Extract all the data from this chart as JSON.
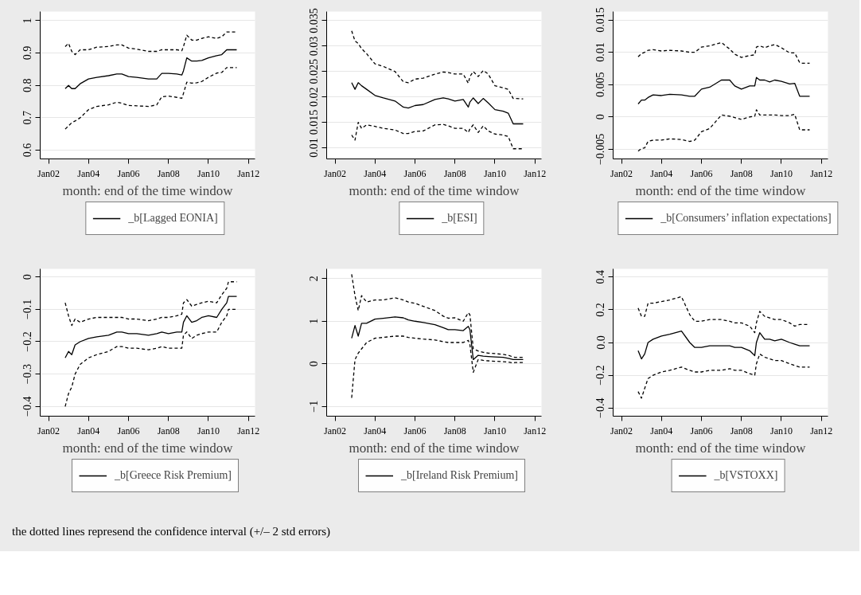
{
  "chart_data": [
    {
      "type": "line",
      "xlabel": "month: end of the time window",
      "legend": "bottom",
      "grid": "y",
      "line_style": "solid",
      "x": [
        "2002-11",
        "2003-01",
        "2003-03",
        "2003-05",
        "2003-08",
        "2004-01",
        "2004-06",
        "2005-01",
        "2005-06",
        "2005-09",
        "2006-01",
        "2006-06",
        "2007-01",
        "2007-06",
        "2007-09",
        "2008-01",
        "2008-06",
        "2008-09",
        "2008-10",
        "2008-12",
        "2009-03",
        "2009-06",
        "2009-09",
        "2010-01",
        "2010-06",
        "2010-09",
        "2010-12",
        "2011-01",
        "2011-06"
      ],
      "xlim": [
        "2001-08",
        "2012-05"
      ],
      "xticks": [
        {
          "value": "2002-01",
          "label": "Jan02"
        },
        {
          "value": "2004-01",
          "label": "Jan04"
        },
        {
          "value": "2006-01",
          "label": "Jan06"
        },
        {
          "value": "2008-01",
          "label": "Jan08"
        },
        {
          "value": "2010-01",
          "label": "Jan10"
        },
        {
          "value": "2012-01",
          "label": "Jan12"
        }
      ],
      "ylim": [
        0.573,
        1.028
      ],
      "yticks": [
        0.6,
        0.7,
        0.8,
        0.9,
        1
      ],
      "series": [
        {
          "name": "_b[Lagged EONIA]",
          "color": "#000000",
          "values": [
            0.79,
            0.8,
            0.79,
            0.79,
            0.805,
            0.82,
            0.825,
            0.83,
            0.835,
            0.835,
            0.827,
            0.825,
            0.82,
            0.82,
            0.837,
            0.837,
            0.835,
            0.832,
            0.845,
            0.885,
            0.875,
            0.875,
            0.877,
            0.885,
            0.892,
            0.895,
            0.91,
            0.91,
            0.91
          ]
        },
        {
          "color": "#000000",
          "line_style": "dashed",
          "values": [
            0.92,
            0.93,
            0.905,
            0.895,
            0.91,
            0.91,
            0.918,
            0.92,
            0.925,
            0.925,
            0.915,
            0.912,
            0.905,
            0.905,
            0.91,
            0.91,
            0.91,
            0.907,
            0.92,
            0.955,
            0.94,
            0.94,
            0.945,
            0.95,
            0.945,
            0.95,
            0.965,
            0.965,
            0.965
          ]
        },
        {
          "color": "#000000",
          "line_style": "dashed",
          "values": [
            0.665,
            0.675,
            0.685,
            0.69,
            0.7,
            0.725,
            0.735,
            0.74,
            0.748,
            0.745,
            0.738,
            0.737,
            0.735,
            0.74,
            0.765,
            0.767,
            0.763,
            0.76,
            0.775,
            0.81,
            0.807,
            0.808,
            0.812,
            0.825,
            0.838,
            0.84,
            0.855,
            0.855,
            0.855
          ]
        }
      ]
    },
    {
      "type": "line",
      "xlabel": "month: end of the time window",
      "legend": "bottom",
      "grid": "y",
      "line_style": "solid",
      "x": [
        "2002-11",
        "2003-01",
        "2003-03",
        "2003-05",
        "2003-08",
        "2004-01",
        "2004-06",
        "2005-01",
        "2005-06",
        "2005-09",
        "2006-01",
        "2006-06",
        "2007-01",
        "2007-06",
        "2007-09",
        "2008-01",
        "2008-06",
        "2008-09",
        "2008-10",
        "2008-12",
        "2009-03",
        "2009-06",
        "2009-09",
        "2010-01",
        "2010-06",
        "2010-09",
        "2010-12",
        "2011-01",
        "2011-06"
      ],
      "xlim": [
        "2001-08",
        "2012-05"
      ],
      "xticks": [
        {
          "value": "2002-01",
          "label": "Jan02"
        },
        {
          "value": "2004-01",
          "label": "Jan04"
        },
        {
          "value": "2006-01",
          "label": "Jan06"
        },
        {
          "value": "2008-01",
          "label": "Jan08"
        },
        {
          "value": "2010-01",
          "label": "Jan10"
        },
        {
          "value": "2012-01",
          "label": "Jan12"
        }
      ],
      "ylim": [
        0.0078,
        0.0368
      ],
      "yticks": [
        0.01,
        0.015,
        0.02,
        0.025,
        0.03,
        0.035
      ],
      "series": [
        {
          "name": "_b[ESI]",
          "color": "#000000",
          "values": [
            0.0228,
            0.0215,
            0.0228,
            0.0222,
            0.0215,
            0.0203,
            0.0198,
            0.0192,
            0.018,
            0.0178,
            0.0183,
            0.0185,
            0.0195,
            0.0198,
            0.0196,
            0.0192,
            0.0195,
            0.018,
            0.019,
            0.0198,
            0.0187,
            0.0197,
            0.0188,
            0.0175,
            0.0172,
            0.0168,
            0.0147,
            0.0147,
            0.0147
          ]
        },
        {
          "color": "#000000",
          "line_style": "dashed",
          "values": [
            0.033,
            0.031,
            0.0305,
            0.0295,
            0.0285,
            0.0265,
            0.026,
            0.025,
            0.023,
            0.0228,
            0.0235,
            0.0237,
            0.0245,
            0.0249,
            0.0248,
            0.0245,
            0.0245,
            0.0227,
            0.024,
            0.025,
            0.024,
            0.0252,
            0.0245,
            0.0222,
            0.0218,
            0.0215,
            0.0197,
            0.0197,
            0.0196
          ]
        },
        {
          "color": "#000000",
          "line_style": "dashed",
          "values": [
            0.0125,
            0.0115,
            0.015,
            0.0138,
            0.0145,
            0.0142,
            0.0138,
            0.0135,
            0.0128,
            0.0128,
            0.0132,
            0.0133,
            0.0145,
            0.0146,
            0.0143,
            0.0138,
            0.0138,
            0.013,
            0.0137,
            0.0145,
            0.013,
            0.0143,
            0.0133,
            0.0127,
            0.0125,
            0.0122,
            0.0098,
            0.0098,
            0.0098
          ]
        }
      ]
    },
    {
      "type": "line",
      "xlabel": "month: end of the time window",
      "legend": "bottom",
      "grid": "y",
      "line_style": "solid",
      "x": [
        "2002-11",
        "2003-01",
        "2003-03",
        "2003-05",
        "2003-08",
        "2004-01",
        "2004-06",
        "2005-01",
        "2005-06",
        "2005-09",
        "2006-01",
        "2006-06",
        "2007-01",
        "2007-06",
        "2007-09",
        "2008-01",
        "2008-06",
        "2008-09",
        "2008-10",
        "2008-12",
        "2009-03",
        "2009-06",
        "2009-09",
        "2010-01",
        "2010-06",
        "2010-09",
        "2010-12",
        "2011-01",
        "2011-06"
      ],
      "xlim": [
        "2001-08",
        "2012-05"
      ],
      "xticks": [
        {
          "value": "2002-01",
          "label": "Jan02"
        },
        {
          "value": "2004-01",
          "label": "Jan04"
        },
        {
          "value": "2006-01",
          "label": "Jan06"
        },
        {
          "value": "2008-01",
          "label": "Jan08"
        },
        {
          "value": "2010-01",
          "label": "Jan10"
        },
        {
          "value": "2012-01",
          "label": "Jan12"
        }
      ],
      "ylim": [
        -0.0065,
        0.0163
      ],
      "yticks": [
        {
          "value": -0.005,
          "label": "−0.005"
        },
        0,
        0.005,
        0.01,
        0.015
      ],
      "series": [
        {
          "name": "_b[Consumers’ inflation expectations]",
          "color": "#000000",
          "values": [
            0.002,
            0.0026,
            0.0026,
            0.003,
            0.0034,
            0.0033,
            0.0035,
            0.0034,
            0.0032,
            0.0032,
            0.0043,
            0.0046,
            0.0057,
            0.0057,
            0.0048,
            0.0043,
            0.0048,
            0.0048,
            0.0061,
            0.0057,
            0.0057,
            0.0054,
            0.0057,
            0.0055,
            0.0051,
            0.0052,
            0.0032,
            0.0032,
            0.0032
          ]
        },
        {
          "color": "#000000",
          "line_style": "dashed",
          "values": [
            0.0093,
            0.0098,
            0.01,
            0.0103,
            0.0104,
            0.0102,
            0.0103,
            0.0102,
            0.01,
            0.01,
            0.0108,
            0.011,
            0.0115,
            0.0105,
            0.0097,
            0.0092,
            0.0095,
            0.0096,
            0.0108,
            0.011,
            0.0107,
            0.011,
            0.0112,
            0.0107,
            0.0099,
            0.0099,
            0.0084,
            0.0083,
            0.0083
          ]
        },
        {
          "color": "#000000",
          "line_style": "dashed",
          "values": [
            -0.0053,
            -0.0049,
            -0.0048,
            -0.0038,
            -0.0036,
            -0.0036,
            -0.0034,
            -0.0035,
            -0.0038,
            -0.0036,
            -0.0023,
            -0.0018,
            0.0003,
            0.0001,
            -0.0001,
            -0.0004,
            0,
            0.0001,
            0.0011,
            0.0003,
            0.0003,
            0.0003,
            0.0003,
            0.0002,
            0.0002,
            0.0004,
            -0.002,
            -0.002,
            -0.002
          ]
        }
      ]
    },
    {
      "type": "line",
      "xlabel": "month: end of the time window",
      "legend": "bottom",
      "grid": "y",
      "line_style": "solid",
      "annotations": [
        "the dotted lines represend the confidence interval (+/– 2 std errors)"
      ],
      "x": [
        "2002-11",
        "2003-01",
        "2003-03",
        "2003-05",
        "2003-08",
        "2004-01",
        "2004-06",
        "2005-01",
        "2005-06",
        "2005-09",
        "2006-01",
        "2006-06",
        "2007-01",
        "2007-06",
        "2007-09",
        "2008-01",
        "2008-06",
        "2008-09",
        "2008-10",
        "2008-12",
        "2009-03",
        "2009-06",
        "2009-09",
        "2010-01",
        "2010-06",
        "2010-09",
        "2010-12",
        "2011-01",
        "2011-06"
      ],
      "xlim": [
        "2001-08",
        "2012-05"
      ],
      "xticks": [
        {
          "value": "2002-01",
          "label": "Jan02"
        },
        {
          "value": "2004-01",
          "label": "Jan04"
        },
        {
          "value": "2006-01",
          "label": "Jan06"
        },
        {
          "value": "2008-01",
          "label": "Jan08"
        },
        {
          "value": "2010-01",
          "label": "Jan10"
        },
        {
          "value": "2012-01",
          "label": "Jan12"
        }
      ],
      "ylim": [
        -0.43,
        0.025
      ],
      "yticks": [
        {
          "value": -0.4,
          "label": "−0.4"
        },
        {
          "value": -0.3,
          "label": "−0.3"
        },
        {
          "value": -0.2,
          "label": "−0.2"
        },
        {
          "value": -0.1,
          "label": "−0.1"
        },
        0
      ],
      "series": [
        {
          "name": "_b[Greece Risk Premium]",
          "color": "#000000",
          "values": [
            -0.25,
            -0.23,
            -0.24,
            -0.21,
            -0.2,
            -0.19,
            -0.185,
            -0.18,
            -0.17,
            -0.17,
            -0.175,
            -0.175,
            -0.18,
            -0.175,
            -0.17,
            -0.175,
            -0.17,
            -0.17,
            -0.14,
            -0.12,
            -0.14,
            -0.135,
            -0.125,
            -0.12,
            -0.125,
            -0.1,
            -0.08,
            -0.06,
            -0.06
          ]
        },
        {
          "color": "#000000",
          "line_style": "dashed",
          "values": [
            -0.08,
            -0.12,
            -0.15,
            -0.13,
            -0.14,
            -0.13,
            -0.125,
            -0.125,
            -0.125,
            -0.125,
            -0.13,
            -0.13,
            -0.135,
            -0.13,
            -0.125,
            -0.125,
            -0.12,
            -0.115,
            -0.08,
            -0.07,
            -0.09,
            -0.085,
            -0.08,
            -0.075,
            -0.08,
            -0.055,
            -0.035,
            -0.015,
            -0.015
          ]
        },
        {
          "color": "#000000",
          "line_style": "dashed",
          "values": [
            -0.4,
            -0.36,
            -0.34,
            -0.3,
            -0.27,
            -0.25,
            -0.24,
            -0.23,
            -0.215,
            -0.215,
            -0.22,
            -0.22,
            -0.225,
            -0.22,
            -0.215,
            -0.22,
            -0.22,
            -0.22,
            -0.18,
            -0.17,
            -0.19,
            -0.18,
            -0.175,
            -0.17,
            -0.17,
            -0.14,
            -0.12,
            -0.1,
            -0.1
          ]
        }
      ]
    },
    {
      "type": "line",
      "xlabel": "month: end of the time window",
      "legend": "bottom",
      "grid": "y",
      "line_style": "solid",
      "x": [
        "2002-11",
        "2003-01",
        "2003-03",
        "2003-05",
        "2003-08",
        "2004-01",
        "2004-06",
        "2005-01",
        "2005-06",
        "2005-09",
        "2006-01",
        "2006-06",
        "2007-01",
        "2007-06",
        "2007-09",
        "2008-01",
        "2008-06",
        "2008-09",
        "2008-10",
        "2008-12",
        "2009-03",
        "2009-06",
        "2009-09",
        "2010-01",
        "2010-06",
        "2010-09",
        "2010-12",
        "2011-01",
        "2011-06"
      ],
      "xlim": [
        "2001-08",
        "2012-05"
      ],
      "xticks": [
        {
          "value": "2002-01",
          "label": "Jan02"
        },
        {
          "value": "2004-01",
          "label": "Jan04"
        },
        {
          "value": "2006-01",
          "label": "Jan06"
        },
        {
          "value": "2008-01",
          "label": "Jan08"
        },
        {
          "value": "2010-01",
          "label": "Jan10"
        },
        {
          "value": "2012-01",
          "label": "Jan12"
        }
      ],
      "ylim": [
        -1.23,
        2.23
      ],
      "yticks": [
        {
          "value": -1,
          "label": "−1"
        },
        0,
        1,
        2
      ],
      "series": [
        {
          "name": "_b[Ireland Risk Premium]",
          "color": "#000000",
          "values": [
            0.6,
            0.9,
            0.65,
            0.95,
            0.95,
            1.05,
            1.07,
            1.1,
            1.08,
            1.03,
            1.0,
            0.97,
            0.92,
            0.85,
            0.8,
            0.8,
            0.78,
            0.88,
            0.8,
            0.1,
            0.2,
            0.18,
            0.17,
            0.16,
            0.15,
            0.13,
            0.1,
            0.1,
            0.1
          ]
        },
        {
          "color": "#000000",
          "line_style": "dashed",
          "values": [
            2.1,
            1.6,
            1.25,
            1.6,
            1.45,
            1.5,
            1.5,
            1.55,
            1.5,
            1.45,
            1.42,
            1.35,
            1.25,
            1.12,
            1.07,
            1.08,
            1.0,
            1.2,
            1.15,
            0.35,
            0.3,
            0.27,
            0.25,
            0.24,
            0.22,
            0.2,
            0.16,
            0.15,
            0.15
          ]
        },
        {
          "color": "#000000",
          "line_style": "dashed",
          "values": [
            -0.8,
            0.1,
            0.25,
            0.35,
            0.5,
            0.6,
            0.62,
            0.65,
            0.65,
            0.62,
            0.6,
            0.58,
            0.56,
            0.52,
            0.5,
            0.5,
            0.5,
            0.55,
            0.45,
            -0.2,
            0.1,
            0.08,
            0.07,
            0.06,
            0.05,
            0.04,
            0.02,
            0.03,
            0.03
          ]
        }
      ]
    },
    {
      "type": "line",
      "xlabel": "month: end of the time window",
      "legend": "bottom",
      "grid": "y",
      "line_style": "solid",
      "x": [
        "2002-11",
        "2003-01",
        "2003-03",
        "2003-05",
        "2003-08",
        "2004-01",
        "2004-06",
        "2005-01",
        "2005-06",
        "2005-09",
        "2006-01",
        "2006-06",
        "2007-01",
        "2007-06",
        "2007-09",
        "2008-01",
        "2008-06",
        "2008-09",
        "2008-10",
        "2008-12",
        "2009-03",
        "2009-06",
        "2009-09",
        "2010-01",
        "2010-06",
        "2010-09",
        "2010-12",
        "2011-01",
        "2011-06"
      ],
      "xlim": [
        "2001-08",
        "2012-05"
      ],
      "xticks": [
        {
          "value": "2002-01",
          "label": "Jan02"
        },
        {
          "value": "2004-01",
          "label": "Jan04"
        },
        {
          "value": "2006-01",
          "label": "Jan06"
        },
        {
          "value": "2008-01",
          "label": "Jan08"
        },
        {
          "value": "2010-01",
          "label": "Jan10"
        },
        {
          "value": "2012-01",
          "label": "Jan12"
        }
      ],
      "ylim": [
        -0.45,
        0.45
      ],
      "yticks": [
        {
          "value": -0.4,
          "label": "−0.4"
        },
        {
          "value": -0.2,
          "label": "−0.2"
        },
        {
          "value": 0,
          "label": "0.0"
        },
        0.2,
        0.4
      ],
      "series": [
        {
          "name": "_b[VSTOXX]",
          "color": "#000000",
          "values": [
            -0.05,
            -0.1,
            -0.07,
            0.0,
            0.02,
            0.04,
            0.05,
            0.07,
            0.0,
            -0.03,
            -0.03,
            -0.02,
            -0.02,
            -0.02,
            -0.03,
            -0.03,
            -0.05,
            -0.08,
            0.0,
            0.06,
            0.02,
            0.02,
            0.01,
            0.02,
            0.0,
            -0.01,
            -0.02,
            -0.02,
            -0.02
          ]
        },
        {
          "color": "#000000",
          "line_style": "dashed",
          "values": [
            0.21,
            0.16,
            0.16,
            0.24,
            0.24,
            0.25,
            0.26,
            0.28,
            0.17,
            0.13,
            0.13,
            0.14,
            0.14,
            0.13,
            0.12,
            0.12,
            0.1,
            0.06,
            0.12,
            0.19,
            0.16,
            0.15,
            0.14,
            0.14,
            0.12,
            0.1,
            0.11,
            0.11,
            0.11
          ]
        },
        {
          "color": "#000000",
          "line_style": "dashed",
          "values": [
            -0.3,
            -0.34,
            -0.28,
            -0.22,
            -0.2,
            -0.18,
            -0.17,
            -0.15,
            -0.17,
            -0.18,
            -0.18,
            -0.17,
            -0.17,
            -0.16,
            -0.17,
            -0.17,
            -0.19,
            -0.2,
            -0.13,
            -0.07,
            -0.09,
            -0.1,
            -0.11,
            -0.11,
            -0.13,
            -0.14,
            -0.15,
            -0.15,
            -0.15
          ]
        }
      ]
    }
  ]
}
